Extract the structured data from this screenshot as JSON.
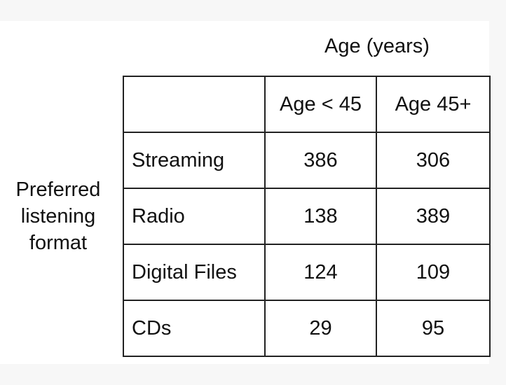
{
  "chart_data": {
    "type": "table",
    "column_group_label": "Age (years)",
    "row_group_label": "Preferred\nlistening\nformat",
    "columns": [
      "Age < 45",
      "Age 45+"
    ],
    "rows": [
      {
        "label": "Streaming",
        "values": [
          "386",
          "306"
        ]
      },
      {
        "label": "Radio",
        "values": [
          "138",
          "389"
        ]
      },
      {
        "label": "Digital Files",
        "values": [
          "124",
          "109"
        ]
      },
      {
        "label": "CDs",
        "values": [
          "29",
          "95"
        ]
      }
    ]
  }
}
